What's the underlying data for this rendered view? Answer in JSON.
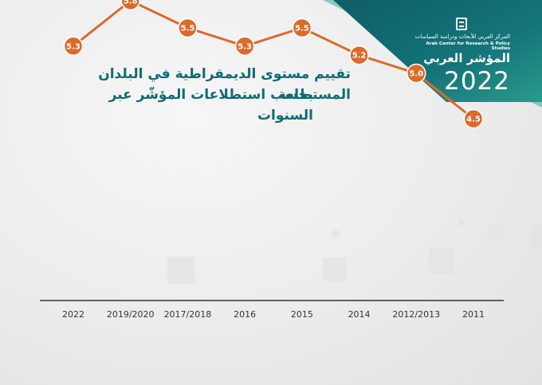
{
  "brand": {
    "org_ar": "المركز العربي للأبحاث ودراسة السياسات",
    "org_en": "Arab Center for Research & Policy Studies",
    "name": "المؤشر العربي",
    "year": "2022"
  },
  "colors": {
    "line": "#dc6a2b",
    "marker": "#dc6a2b",
    "title": "#0f6a73",
    "banner_dark": "#0e5d66",
    "banner_light": "#2a9a8c",
    "axis": "#333333"
  },
  "chart_data": {
    "type": "line",
    "title": "تقييم مستوى الديمقراطية في البلدان المستطلعة",
    "subtitle": "بحسب استطلاعات المؤشّر عبر السنوات",
    "categories": [
      "2022",
      "2019/2020",
      "2017/2018",
      "2016",
      "2015",
      "2014",
      "2012/2013",
      "2011"
    ],
    "series": [
      {
        "values": [
          5.3,
          5.8,
          5.5,
          5.3,
          5.5,
          5.2,
          5.0,
          4.5
        ]
      }
    ],
    "data_labels": [
      "5.3",
      "5.8",
      "5.5",
      "5.3",
      "5.5",
      "5.2",
      "5.0",
      "4.5"
    ],
    "ylim": [
      3.0,
      6.0
    ],
    "grid": false,
    "legend": "none",
    "xlabel": "",
    "ylabel": ""
  }
}
